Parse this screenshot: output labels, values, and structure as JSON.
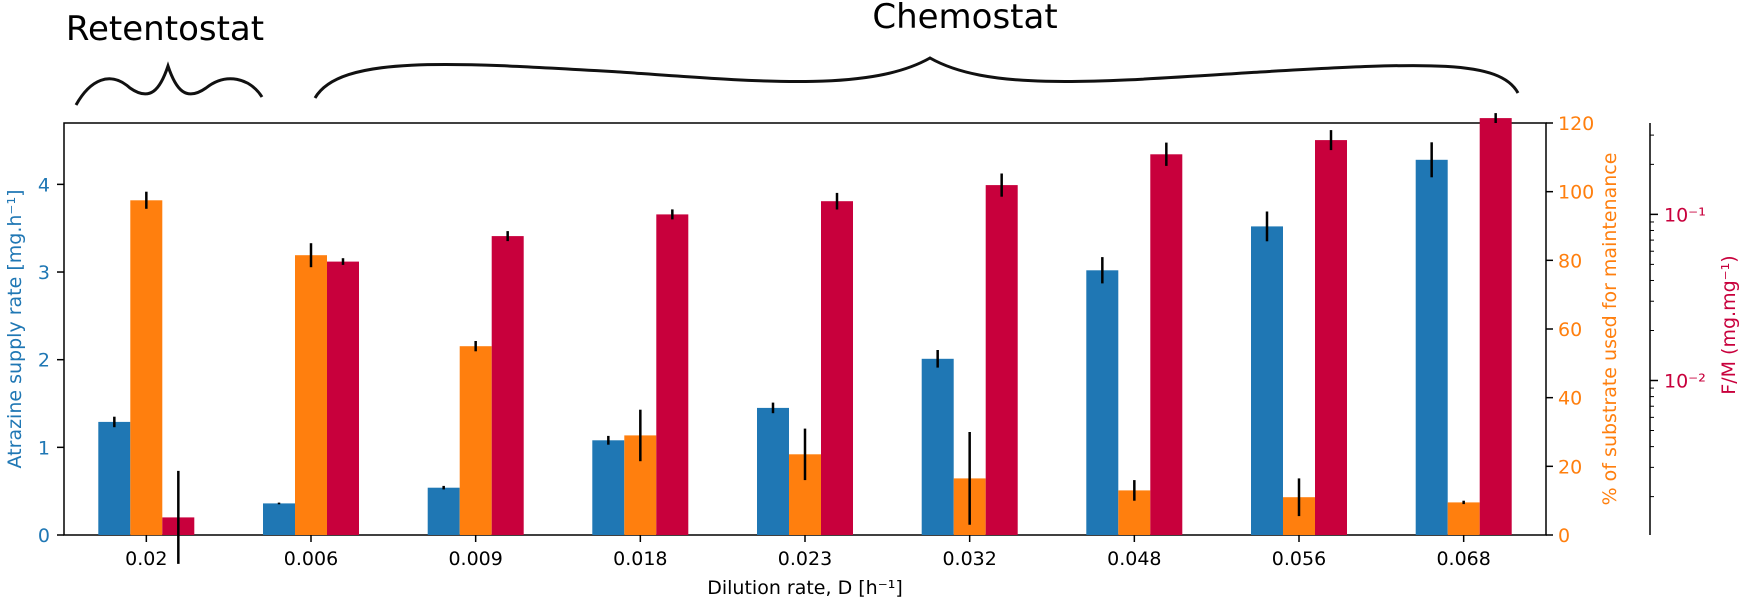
{
  "chart_data": {
    "type": "bar",
    "xlabel": "Dilution rate, D [h⁻¹]",
    "categories": [
      "0.02",
      "0.006",
      "0.009",
      "0.018",
      "0.023",
      "0.032",
      "0.048",
      "0.056",
      "0.068"
    ],
    "group_labels": [
      {
        "label": "Retentostat",
        "categories": [
          "0.02"
        ]
      },
      {
        "label": "Chemostat",
        "categories": [
          "0.006",
          "0.009",
          "0.018",
          "0.023",
          "0.032",
          "0.048",
          "0.056",
          "0.068"
        ]
      }
    ],
    "axes": {
      "left": {
        "label": "Atrazine supply rate [mg.h⁻¹]",
        "ylim": [
          0,
          4.7
        ],
        "ticks": [
          "0",
          "1",
          "2",
          "3",
          "4"
        ],
        "color": "#1f77b4"
      },
      "right1": {
        "label": "% of substrate used for maintenance",
        "ylim": [
          0,
          120
        ],
        "ticks": [
          "0",
          "20",
          "40",
          "60",
          "80",
          "100",
          "120"
        ],
        "color": "#ff7f0e"
      },
      "right2": {
        "label": "F/M (mg.mg⁻¹)",
        "scale": "log",
        "ylim_log10": [
          -2.93,
          -0.45
        ],
        "tick_labels": [
          "10⁻²",
          "10⁻¹"
        ],
        "tick_exponents": [
          -2,
          -1
        ],
        "color": "#c8003c"
      }
    },
    "series": [
      {
        "name": "Atrazine supply rate",
        "axis": "left",
        "color": "#1f77b4",
        "values": [
          1.29,
          0.36,
          0.54,
          1.08,
          1.45,
          2.01,
          3.02,
          3.52,
          4.28
        ],
        "errors": [
          0.06,
          0.01,
          0.02,
          0.05,
          0.06,
          0.1,
          0.15,
          0.17,
          0.2
        ]
      },
      {
        "name": "% of substrate used for maintenance",
        "axis": "right1",
        "color": "#ff7f0e",
        "values": [
          97.5,
          81.5,
          55,
          29,
          23.5,
          16.5,
          13,
          11,
          9.5
        ],
        "errors": [
          2.5,
          3.5,
          1.5,
          7.5,
          7.5,
          13.5,
          3,
          5.5,
          0.5
        ]
      },
      {
        "name": "F/M",
        "axis": "right2",
        "color": "#c8003c",
        "scale": "log",
        "values": [
          0.0015,
          0.052,
          0.074,
          0.1,
          0.12,
          0.15,
          0.23,
          0.28,
          0.38
        ],
        "log10_errors": [
          0.28,
          0.02,
          0.03,
          0.03,
          0.05,
          0.07,
          0.07,
          0.06,
          0.03
        ]
      }
    ]
  }
}
